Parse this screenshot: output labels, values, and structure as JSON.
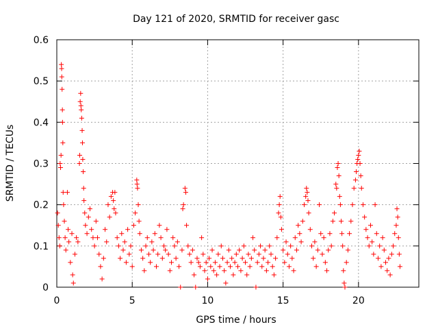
{
  "chart_data": {
    "type": "scatter",
    "title": "Day 121 of 2020, SRMTID for receiver gasc",
    "xlabel": "GPS time / hours",
    "ylabel": "SRMTID / TECUs",
    "xlim": [
      0,
      24
    ],
    "ylim": [
      0,
      0.6
    ],
    "xticks": [
      0,
      5,
      10,
      15,
      20
    ],
    "xtick_labels": [
      "0",
      "5",
      "10",
      "15",
      "20"
    ],
    "yticks": [
      0,
      0.1,
      0.2,
      0.3,
      0.4,
      0.5,
      0.6
    ],
    "ytick_labels": [
      "0",
      "0.1",
      "0.2",
      "0.3",
      "0.4",
      "0.5",
      "0.6"
    ],
    "grid": true,
    "marker": "+",
    "color": "#ff0000",
    "series": [
      {
        "name": "SRMTID",
        "points": [
          [
            0.05,
            0.18
          ],
          [
            0.1,
            0.15
          ],
          [
            0.15,
            0.12
          ],
          [
            0.2,
            0.1
          ],
          [
            0.22,
            0.3
          ],
          [
            0.25,
            0.29
          ],
          [
            0.28,
            0.32
          ],
          [
            0.3,
            0.54
          ],
          [
            0.32,
            0.53
          ],
          [
            0.33,
            0.51
          ],
          [
            0.35,
            0.48
          ],
          [
            0.37,
            0.43
          ],
          [
            0.38,
            0.4
          ],
          [
            0.4,
            0.35
          ],
          [
            0.42,
            0.23
          ],
          [
            0.45,
            0.2
          ],
          [
            0.5,
            0.16
          ],
          [
            0.55,
            0.12
          ],
          [
            0.6,
            0.09
          ],
          [
            0.7,
            0.23
          ],
          [
            0.75,
            0.14
          ],
          [
            0.8,
            0.11
          ],
          [
            0.9,
            0.06
          ],
          [
            1.0,
            0.13
          ],
          [
            1.05,
            0.03
          ],
          [
            1.1,
            0.01
          ],
          [
            1.2,
            0.08
          ],
          [
            1.3,
            0.12
          ],
          [
            1.4,
            0.11
          ],
          [
            1.5,
            0.3
          ],
          [
            1.52,
            0.32
          ],
          [
            1.55,
            0.45
          ],
          [
            1.58,
            0.47
          ],
          [
            1.6,
            0.44
          ],
          [
            1.62,
            0.43
          ],
          [
            1.65,
            0.41
          ],
          [
            1.68,
            0.38
          ],
          [
            1.7,
            0.35
          ],
          [
            1.72,
            0.31
          ],
          [
            1.75,
            0.28
          ],
          [
            1.78,
            0.24
          ],
          [
            1.8,
            0.21
          ],
          [
            1.85,
            0.18
          ],
          [
            1.9,
            0.15
          ],
          [
            2.0,
            0.13
          ],
          [
            2.1,
            0.17
          ],
          [
            2.2,
            0.19
          ],
          [
            2.3,
            0.14
          ],
          [
            2.4,
            0.12
          ],
          [
            2.5,
            0.1
          ],
          [
            2.6,
            0.16
          ],
          [
            2.7,
            0.12
          ],
          [
            2.8,
            0.08
          ],
          [
            2.9,
            0.05
          ],
          [
            3.0,
            0.02
          ],
          [
            3.1,
            0.07
          ],
          [
            3.2,
            0.14
          ],
          [
            3.3,
            0.11
          ],
          [
            3.4,
            0.2
          ],
          [
            3.5,
            0.17
          ],
          [
            3.6,
            0.22
          ],
          [
            3.7,
            0.23
          ],
          [
            3.75,
            0.21
          ],
          [
            3.8,
            0.19
          ],
          [
            3.85,
            0.23
          ],
          [
            3.9,
            0.18
          ],
          [
            4.0,
            0.12
          ],
          [
            4.1,
            0.1
          ],
          [
            4.2,
            0.07
          ],
          [
            4.3,
            0.13
          ],
          [
            4.4,
            0.09
          ],
          [
            4.5,
            0.11
          ],
          [
            4.6,
            0.06
          ],
          [
            4.7,
            0.14
          ],
          [
            4.8,
            0.08
          ],
          [
            4.9,
            0.1
          ],
          [
            5.0,
            0.05
          ],
          [
            5.1,
            0.15
          ],
          [
            5.2,
            0.18
          ],
          [
            5.3,
            0.26
          ],
          [
            5.32,
            0.25
          ],
          [
            5.35,
            0.24
          ],
          [
            5.4,
            0.2
          ],
          [
            5.45,
            0.16
          ],
          [
            5.5,
            0.13
          ],
          [
            5.6,
            0.09
          ],
          [
            5.7,
            0.07
          ],
          [
            5.8,
            0.04
          ],
          [
            5.9,
            0.1
          ],
          [
            6.0,
            0.12
          ],
          [
            6.1,
            0.08
          ],
          [
            6.2,
            0.06
          ],
          [
            6.3,
            0.11
          ],
          [
            6.4,
            0.09
          ],
          [
            6.5,
            0.13
          ],
          [
            6.6,
            0.05
          ],
          [
            6.7,
            0.08
          ],
          [
            6.8,
            0.15
          ],
          [
            6.9,
            0.12
          ],
          [
            7.0,
            0.07
          ],
          [
            7.1,
            0.1
          ],
          [
            7.2,
            0.09
          ],
          [
            7.3,
            0.14
          ],
          [
            7.4,
            0.08
          ],
          [
            7.5,
            0.04
          ],
          [
            7.6,
            0.06
          ],
          [
            7.7,
            0.12
          ],
          [
            7.8,
            0.1
          ],
          [
            7.9,
            0.07
          ],
          [
            8.0,
            0.11
          ],
          [
            8.1,
            0.05
          ],
          [
            8.2,
            0.0
          ],
          [
            8.3,
            0.09
          ],
          [
            8.35,
            0.19
          ],
          [
            8.4,
            0.2
          ],
          [
            8.5,
            0.24
          ],
          [
            8.55,
            0.23
          ],
          [
            8.6,
            0.15
          ],
          [
            8.7,
            0.1
          ],
          [
            8.8,
            0.08
          ],
          [
            8.9,
            0.06
          ],
          [
            9.0,
            0.09
          ],
          [
            9.1,
            0.03
          ],
          [
            9.2,
            0.0
          ],
          [
            9.3,
            0.07
          ],
          [
            9.4,
            0.06
          ],
          [
            9.5,
            0.05
          ],
          [
            9.6,
            0.12
          ],
          [
            9.7,
            0.08
          ],
          [
            9.8,
            0.04
          ],
          [
            9.9,
            0.06
          ],
          [
            10.0,
            0.02
          ],
          [
            10.1,
            0.07
          ],
          [
            10.2,
            0.05
          ],
          [
            10.3,
            0.09
          ],
          [
            10.4,
            0.04
          ],
          [
            10.5,
            0.06
          ],
          [
            10.6,
            0.03
          ],
          [
            10.7,
            0.08
          ],
          [
            10.8,
            0.05
          ],
          [
            10.9,
            0.1
          ],
          [
            11.0,
            0.07
          ],
          [
            11.1,
            0.04
          ],
          [
            11.2,
            0.01
          ],
          [
            11.3,
            0.06
          ],
          [
            11.4,
            0.09
          ],
          [
            11.5,
            0.05
          ],
          [
            11.6,
            0.07
          ],
          [
            11.7,
            0.03
          ],
          [
            11.8,
            0.06
          ],
          [
            11.9,
            0.08
          ],
          [
            12.0,
            0.05
          ],
          [
            12.1,
            0.09
          ],
          [
            12.2,
            0.04
          ],
          [
            12.3,
            0.07
          ],
          [
            12.4,
            0.1
          ],
          [
            12.5,
            0.06
          ],
          [
            12.6,
            0.03
          ],
          [
            12.7,
            0.08
          ],
          [
            12.8,
            0.05
          ],
          [
            12.9,
            0.07
          ],
          [
            13.0,
            0.12
          ],
          [
            13.1,
            0.09
          ],
          [
            13.2,
            0.0
          ],
          [
            13.3,
            0.06
          ],
          [
            13.4,
            0.08
          ],
          [
            13.5,
            0.1
          ],
          [
            13.6,
            0.05
          ],
          [
            13.7,
            0.07
          ],
          [
            13.8,
            0.09
          ],
          [
            13.9,
            0.04
          ],
          [
            14.0,
            0.06
          ],
          [
            14.1,
            0.1
          ],
          [
            14.2,
            0.08
          ],
          [
            14.3,
            0.05
          ],
          [
            14.4,
            0.03
          ],
          [
            14.5,
            0.07
          ],
          [
            14.6,
            0.12
          ],
          [
            14.7,
            0.18
          ],
          [
            14.75,
            0.2
          ],
          [
            14.8,
            0.22
          ],
          [
            14.85,
            0.17
          ],
          [
            14.9,
            0.14
          ],
          [
            15.0,
            0.09
          ],
          [
            15.1,
            0.06
          ],
          [
            15.2,
            0.11
          ],
          [
            15.3,
            0.08
          ],
          [
            15.4,
            0.05
          ],
          [
            15.5,
            0.1
          ],
          [
            15.6,
            0.07
          ],
          [
            15.7,
            0.04
          ],
          [
            15.8,
            0.12
          ],
          [
            15.9,
            0.09
          ],
          [
            16.0,
            0.15
          ],
          [
            16.1,
            0.13
          ],
          [
            16.2,
            0.11
          ],
          [
            16.3,
            0.16
          ],
          [
            16.4,
            0.2
          ],
          [
            16.5,
            0.22
          ],
          [
            16.55,
            0.24
          ],
          [
            16.6,
            0.23
          ],
          [
            16.65,
            0.21
          ],
          [
            16.7,
            0.18
          ],
          [
            16.8,
            0.14
          ],
          [
            16.9,
            0.1
          ],
          [
            17.0,
            0.07
          ],
          [
            17.1,
            0.11
          ],
          [
            17.2,
            0.05
          ],
          [
            17.3,
            0.09
          ],
          [
            17.4,
            0.2
          ],
          [
            17.5,
            0.13
          ],
          [
            17.6,
            0.08
          ],
          [
            17.7,
            0.12
          ],
          [
            17.8,
            0.06
          ],
          [
            17.9,
            0.04
          ],
          [
            18.0,
            0.09
          ],
          [
            18.1,
            0.13
          ],
          [
            18.2,
            0.1
          ],
          [
            18.3,
            0.16
          ],
          [
            18.4,
            0.18
          ],
          [
            18.5,
            0.25
          ],
          [
            18.55,
            0.24
          ],
          [
            18.6,
            0.29
          ],
          [
            18.65,
            0.3
          ],
          [
            18.7,
            0.27
          ],
          [
            18.75,
            0.22
          ],
          [
            18.8,
            0.2
          ],
          [
            18.85,
            0.16
          ],
          [
            18.9,
            0.13
          ],
          [
            18.95,
            0.1
          ],
          [
            19.0,
            0.04
          ],
          [
            19.05,
            0.01
          ],
          [
            19.1,
            0.0
          ],
          [
            19.2,
            0.06
          ],
          [
            19.3,
            0.09
          ],
          [
            19.4,
            0.13
          ],
          [
            19.5,
            0.16
          ],
          [
            19.6,
            0.2
          ],
          [
            19.7,
            0.24
          ],
          [
            19.8,
            0.26
          ],
          [
            19.85,
            0.28
          ],
          [
            19.9,
            0.3
          ],
          [
            19.95,
            0.31
          ],
          [
            20.0,
            0.32
          ],
          [
            20.05,
            0.33
          ],
          [
            20.1,
            0.3
          ],
          [
            20.15,
            0.27
          ],
          [
            20.2,
            0.24
          ],
          [
            20.3,
            0.2
          ],
          [
            20.4,
            0.17
          ],
          [
            20.5,
            0.14
          ],
          [
            20.6,
            0.12
          ],
          [
            20.7,
            0.1
          ],
          [
            20.8,
            0.15
          ],
          [
            20.9,
            0.11
          ],
          [
            21.0,
            0.08
          ],
          [
            21.1,
            0.2
          ],
          [
            21.2,
            0.13
          ],
          [
            21.3,
            0.07
          ],
          [
            21.4,
            0.1
          ],
          [
            21.5,
            0.05
          ],
          [
            21.6,
            0.12
          ],
          [
            21.7,
            0.09
          ],
          [
            21.8,
            0.06
          ],
          [
            21.9,
            0.04
          ],
          [
            22.0,
            0.07
          ],
          [
            22.1,
            0.03
          ],
          [
            22.2,
            0.08
          ],
          [
            22.3,
            0.1
          ],
          [
            22.4,
            0.13
          ],
          [
            22.5,
            0.15
          ],
          [
            22.55,
            0.19
          ],
          [
            22.6,
            0.17
          ],
          [
            22.65,
            0.12
          ],
          [
            22.7,
            0.08
          ],
          [
            22.75,
            0.05
          ]
        ]
      }
    ]
  }
}
